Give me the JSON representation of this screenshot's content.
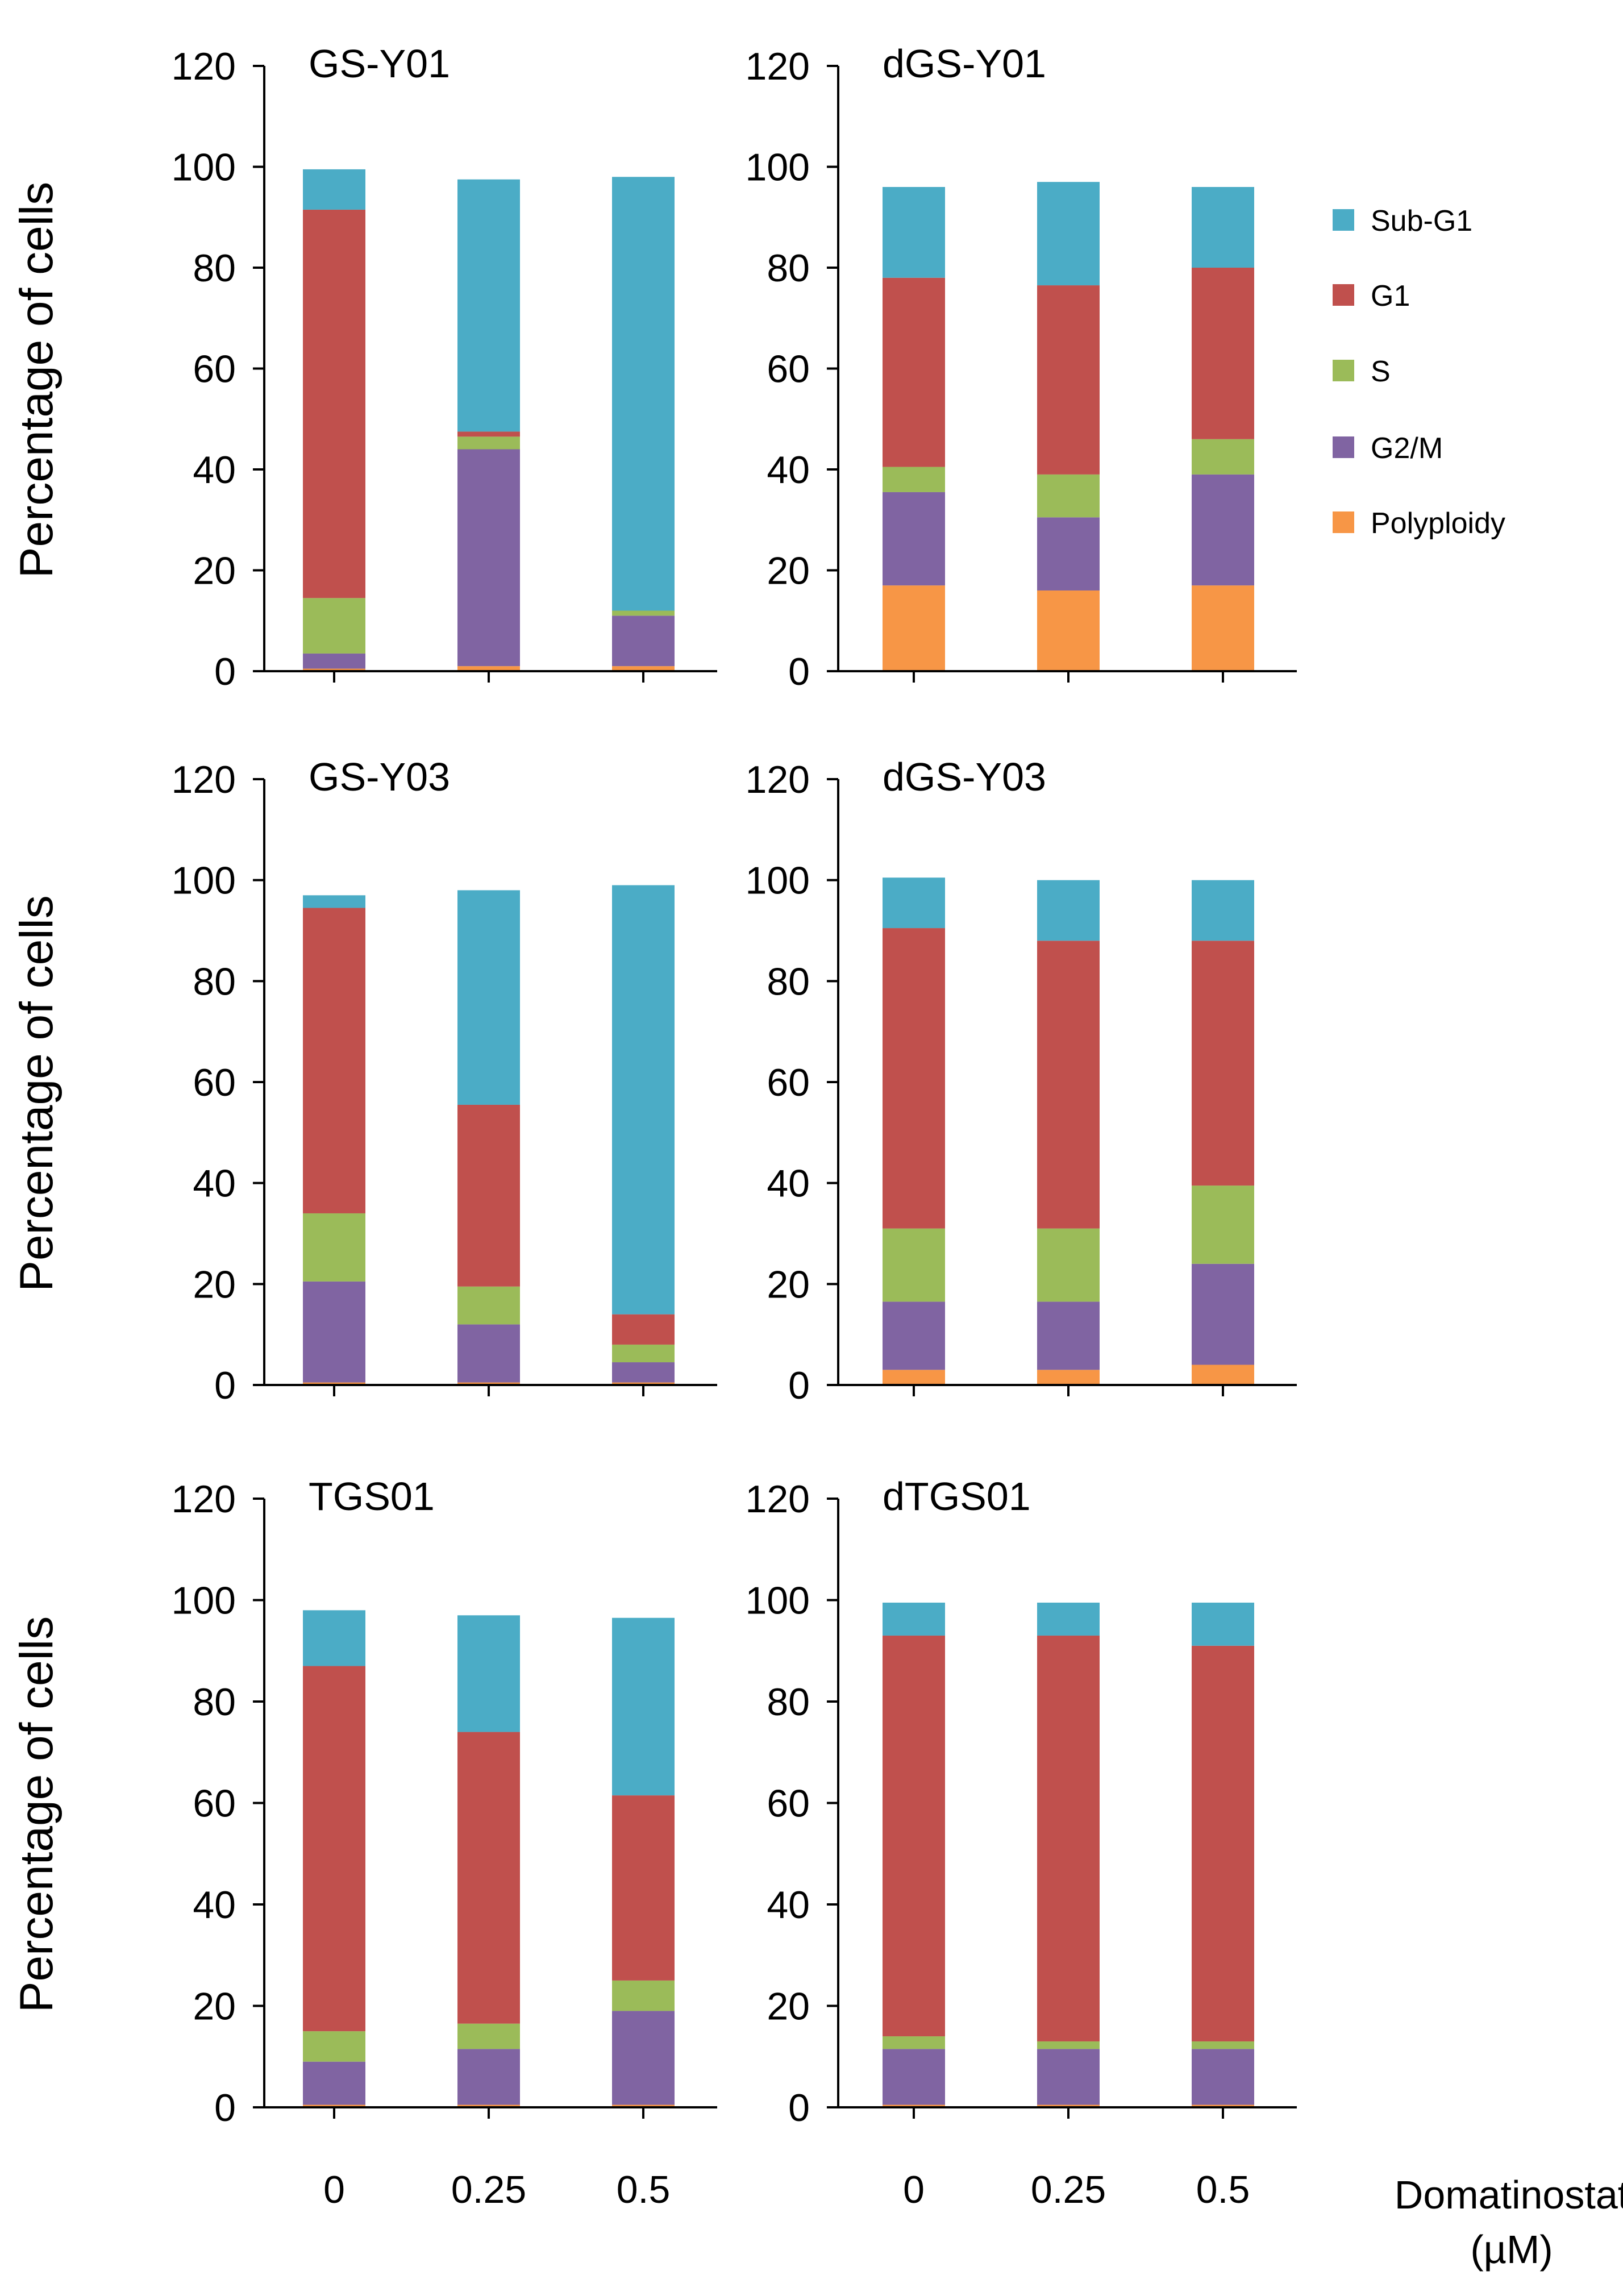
{
  "figure": {
    "xlabel_line1": "Domatinostat",
    "xlabel_line2": "(µM)"
  },
  "legend": [
    {
      "name": "Sub-G1",
      "color": "#4bacc6"
    },
    {
      "name": "G1",
      "color": "#c0504d"
    },
    {
      "name": "S",
      "color": "#9bbb59"
    },
    {
      "name": "G2/M",
      "color": "#8064a2"
    },
    {
      "name": "Polyploidy",
      "color": "#f79646"
    }
  ],
  "chart_data": [
    {
      "type": "bar",
      "stacked": true,
      "title": "GS-Y01",
      "ylabel": "Percentage of cells",
      "xlabel": "",
      "ylim": [
        0,
        120
      ],
      "yticks": [
        "0",
        "20",
        "40",
        "60",
        "80",
        "100",
        "120"
      ],
      "categories": [
        "0",
        "0.25",
        "0.5"
      ],
      "series": [
        {
          "name": "Polyploidy",
          "values": [
            0.5,
            1,
            1
          ]
        },
        {
          "name": "G2/M",
          "values": [
            3,
            43,
            10
          ]
        },
        {
          "name": "S",
          "values": [
            11,
            2.5,
            1
          ]
        },
        {
          "name": "G1",
          "values": [
            77,
            1,
            0
          ]
        },
        {
          "name": "Sub-G1",
          "values": [
            8,
            50,
            86
          ]
        }
      ]
    },
    {
      "type": "bar",
      "stacked": true,
      "title": "dGS-Y01",
      "ylabel": "",
      "xlabel": "",
      "ylim": [
        0,
        120
      ],
      "yticks": [
        "0",
        "20",
        "40",
        "60",
        "80",
        "100",
        "120"
      ],
      "categories": [
        "0",
        "0.25",
        "0.5"
      ],
      "series": [
        {
          "name": "Polyploidy",
          "values": [
            17,
            16,
            17
          ]
        },
        {
          "name": "G2/M",
          "values": [
            18.5,
            14.5,
            22
          ]
        },
        {
          "name": "S",
          "values": [
            5,
            8.5,
            7
          ]
        },
        {
          "name": "G1",
          "values": [
            37.5,
            37.5,
            34
          ]
        },
        {
          "name": "Sub-G1",
          "values": [
            18,
            20.5,
            16
          ]
        }
      ]
    },
    {
      "type": "bar",
      "stacked": true,
      "title": "GS-Y03",
      "ylabel": "Percentage of cells",
      "xlabel": "",
      "ylim": [
        0,
        120
      ],
      "yticks": [
        "0",
        "20",
        "40",
        "60",
        "80",
        "100",
        "120"
      ],
      "categories": [
        "0",
        "0.25",
        "0.5"
      ],
      "series": [
        {
          "name": "Polyploidy",
          "values": [
            0.5,
            0.5,
            0.5
          ]
        },
        {
          "name": "G2/M",
          "values": [
            20,
            11.5,
            4
          ]
        },
        {
          "name": "S",
          "values": [
            13.5,
            7.5,
            3.5
          ]
        },
        {
          "name": "G1",
          "values": [
            60.5,
            36,
            6
          ]
        },
        {
          "name": "Sub-G1",
          "values": [
            2.5,
            42.5,
            85
          ]
        }
      ]
    },
    {
      "type": "bar",
      "stacked": true,
      "title": "dGS-Y03",
      "ylabel": "",
      "xlabel": "",
      "ylim": [
        0,
        120
      ],
      "yticks": [
        "0",
        "20",
        "40",
        "60",
        "80",
        "100",
        "120"
      ],
      "categories": [
        "0",
        "0.25",
        "0.5"
      ],
      "series": [
        {
          "name": "Polyploidy",
          "values": [
            3,
            3,
            4
          ]
        },
        {
          "name": "G2/M",
          "values": [
            13.5,
            13.5,
            20
          ]
        },
        {
          "name": "S",
          "values": [
            14.5,
            14.5,
            15.5
          ]
        },
        {
          "name": "G1",
          "values": [
            59.5,
            57,
            48.5
          ]
        },
        {
          "name": "Sub-G1",
          "values": [
            10,
            12,
            12
          ]
        }
      ]
    },
    {
      "type": "bar",
      "stacked": true,
      "title": "TGS01",
      "ylabel": "Percentage of cells",
      "xlabel": "",
      "ylim": [
        0,
        120
      ],
      "yticks": [
        "0",
        "20",
        "40",
        "60",
        "80",
        "100",
        "120"
      ],
      "categories": [
        "0",
        "0.25",
        "0.5"
      ],
      "series": [
        {
          "name": "Polyploidy",
          "values": [
            0.5,
            0.5,
            0.5
          ]
        },
        {
          "name": "G2/M",
          "values": [
            8.5,
            11,
            18.5
          ]
        },
        {
          "name": "S",
          "values": [
            6,
            5,
            6
          ]
        },
        {
          "name": "G1",
          "values": [
            72,
            57.5,
            36.5
          ]
        },
        {
          "name": "Sub-G1",
          "values": [
            11,
            23,
            35
          ]
        }
      ]
    },
    {
      "type": "bar",
      "stacked": true,
      "title": "dTGS01",
      "ylabel": "",
      "xlabel": "",
      "ylim": [
        0,
        120
      ],
      "yticks": [
        "0",
        "20",
        "40",
        "60",
        "80",
        "100",
        "120"
      ],
      "categories": [
        "0",
        "0.25",
        "0.5"
      ],
      "series": [
        {
          "name": "Polyploidy",
          "values": [
            0.5,
            0.5,
            0.5
          ]
        },
        {
          "name": "G2/M",
          "values": [
            11,
            11,
            11
          ]
        },
        {
          "name": "S",
          "values": [
            2.5,
            1.5,
            1.5
          ]
        },
        {
          "name": "G1",
          "values": [
            79,
            80,
            78
          ]
        },
        {
          "name": "Sub-G1",
          "values": [
            6.5,
            6.5,
            8.5
          ]
        }
      ]
    }
  ]
}
